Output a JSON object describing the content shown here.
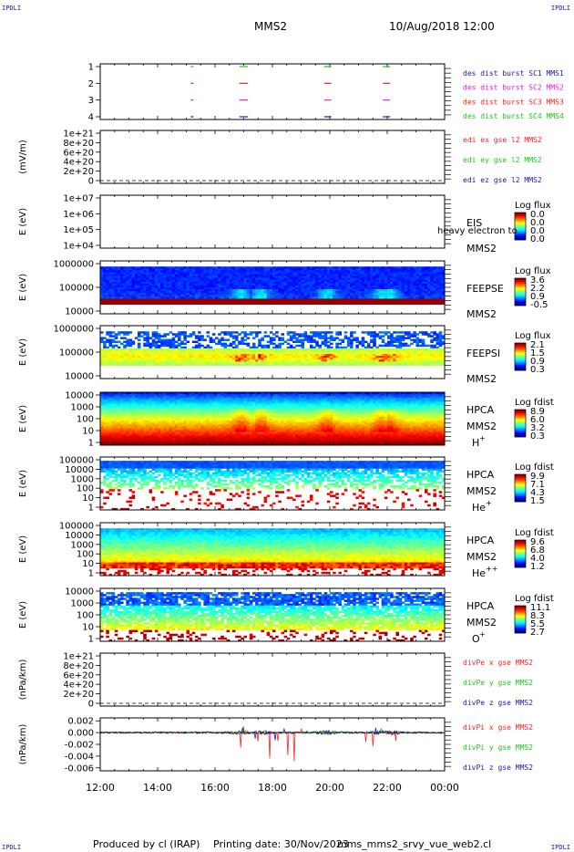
{
  "header": {
    "spacecraft": "MMS2",
    "datetime": "10/Aug/2018 12:00",
    "corner_tl": "IPDLI",
    "corner_tr": "IPDLI",
    "corner_bl": "IPDLI",
    "corner_br": "IPDLI"
  },
  "footer": {
    "produced": "Produced by cl (IRAP)",
    "printing": "Printing date: 30/Nov/2023",
    "file": "mms_mms2_srvy_vue_web2.cl"
  },
  "colors": {
    "red": "#ff2020",
    "green": "#18c818",
    "blue": "#1a1aa8",
    "magenta": "#e020e0",
    "black": "#000000"
  },
  "x_axis": {
    "ticks": [
      "12:00",
      "14:00",
      "16:00",
      "18:00",
      "20:00",
      "22:00",
      "00:00"
    ]
  },
  "chart_data": [
    {
      "type": "line",
      "id": "bursts",
      "ylabel": "",
      "ylim": [
        0.5,
        4.5
      ],
      "yticks": [
        "1",
        "2",
        "3",
        "4"
      ],
      "legend": [
        {
          "name": "des dist burst SC1 MMS1",
          "color": "#1a1aa8"
        },
        {
          "name": "des dist burst SC2 MMS2",
          "color": "#e020e0"
        },
        {
          "name": "des dist burst SC3 MMS3",
          "color": "#ff2020"
        },
        {
          "name": "des dist burst SC4 MMS4",
          "color": "#18c818"
        }
      ],
      "series": [
        {
          "level": 4,
          "color": "#18c818",
          "intervals": [
            [
              15.15,
              15.25
            ],
            [
              16.85,
              17.15
            ],
            [
              19.8,
              20.05
            ],
            [
              21.85,
              22.1
            ]
          ]
        },
        {
          "level": 3,
          "color": "#ff2020",
          "intervals": [
            [
              15.15,
              15.25
            ],
            [
              16.85,
              17.15
            ],
            [
              19.8,
              20.05
            ],
            [
              21.85,
              22.1
            ]
          ]
        },
        {
          "level": 2,
          "color": "#e020e0",
          "intervals": [
            [
              15.15,
              15.25
            ],
            [
              16.85,
              17.15
            ],
            [
              19.8,
              20.05
            ],
            [
              21.85,
              22.1
            ]
          ]
        },
        {
          "level": 1,
          "color": "#1a1aa8",
          "intervals": [
            [
              15.15,
              15.25
            ],
            [
              16.85,
              17.15
            ],
            [
              19.8,
              20.05
            ],
            [
              21.85,
              22.1
            ]
          ]
        }
      ]
    },
    {
      "type": "line",
      "id": "edi",
      "ylabel": "(mV/m)",
      "yticks": [
        "1e+21",
        "8e+20",
        "6e+20",
        "4e+20",
        "2e+20",
        "0"
      ],
      "legend": [
        {
          "name": "edi ex gse l2 MMS2",
          "color": "#ff2020"
        },
        {
          "name": "edi ey gse l2 MMS2",
          "color": "#18c818"
        },
        {
          "name": "edi ez gse l2 MMS2",
          "color": "#1a1aa8"
        }
      ],
      "series": []
    },
    {
      "type": "heatmap",
      "id": "eis",
      "ylabel": "E (eV)",
      "yticks": [
        "1e+07",
        "1e+06",
        "1e+05",
        "1e+04"
      ],
      "labels": [
        "EIS",
        "MMS2"
      ],
      "overlay_label": "heavy electron to",
      "colorbar": {
        "title": "Log flux",
        "ticks": [
          "0.0",
          "0.0",
          "0.0",
          "0.0"
        ]
      }
    },
    {
      "type": "heatmap",
      "id": "feepse",
      "ylabel": "E (eV)",
      "yticks": [
        "1000000",
        "100000",
        "10000"
      ],
      "labels": [
        "FEEPSE",
        "MMS2"
      ],
      "colorbar": {
        "title": "Log flux",
        "ticks": [
          "3.6",
          "2.2",
          "0.9",
          "-0.5"
        ]
      }
    },
    {
      "type": "heatmap",
      "id": "feepsi",
      "ylabel": "E (eV)",
      "yticks": [
        "1000000",
        "100000",
        "10000"
      ],
      "labels": [
        "FEEPSI",
        "MMS2"
      ],
      "colorbar": {
        "title": "Log flux",
        "ticks": [
          "2.1",
          "1.5",
          "0.9",
          "0.3"
        ]
      }
    },
    {
      "type": "heatmap",
      "id": "hpca_h",
      "ylabel": "E (eV)",
      "yticks": [
        "10000",
        "1000",
        "100",
        "10",
        "1"
      ],
      "labels": [
        "HPCA",
        "MMS2"
      ],
      "species": {
        "base": "H",
        "sup": "+"
      },
      "colorbar": {
        "title": "Log fdist",
        "ticks": [
          "8.9",
          "6.0",
          "3.2",
          "0.3"
        ]
      }
    },
    {
      "type": "heatmap",
      "id": "hpca_he",
      "ylabel": "E (eV)",
      "yticks": [
        "100000",
        "10000",
        "1000",
        "100",
        "10",
        "1"
      ],
      "labels": [
        "HPCA",
        "MMS2"
      ],
      "species": {
        "base": "He",
        "sup": "+"
      },
      "colorbar": {
        "title": "Log fdist",
        "ticks": [
          "9.9",
          "7.1",
          "4.3",
          "1.5"
        ]
      }
    },
    {
      "type": "heatmap",
      "id": "hpca_hepp",
      "ylabel": "E (eV)",
      "yticks": [
        "100000",
        "10000",
        "1000",
        "100",
        "10",
        "1"
      ],
      "labels": [
        "HPCA",
        "MMS2"
      ],
      "species": {
        "base": "He",
        "sup": "++"
      },
      "colorbar": {
        "title": "Log fdist",
        "ticks": [
          "9.6",
          "6.8",
          "4.0",
          "1.2"
        ]
      }
    },
    {
      "type": "heatmap",
      "id": "hpca_o",
      "ylabel": "E (eV)",
      "yticks": [
        "10000",
        "1000",
        "100",
        "10",
        "1"
      ],
      "labels": [
        "HPCA",
        "MMS2"
      ],
      "species": {
        "base": "O",
        "sup": "+"
      },
      "colorbar": {
        "title": "Log fdist",
        "ticks": [
          "11.1",
          "8.3",
          "5.5",
          "2.7"
        ]
      }
    },
    {
      "type": "line",
      "id": "divpe",
      "ylabel": "(nPa/km)",
      "yticks": [
        "1e+21",
        "8e+20",
        "6e+20",
        "4e+20",
        "2e+20",
        "0"
      ],
      "legend": [
        {
          "name": "divPe x gse MMS2",
          "color": "#ff2020"
        },
        {
          "name": "divPe y gse MMS2",
          "color": "#18c818"
        },
        {
          "name": "divPe z gse MMS2",
          "color": "#1a1aa8"
        }
      ],
      "series": []
    },
    {
      "type": "line",
      "id": "divpi",
      "ylabel": "(nPa/km)",
      "ylim": [
        -0.0065,
        0.0025
      ],
      "yticks": [
        "0.002",
        "0.000",
        "-0.002",
        "-0.004",
        "-0.006"
      ],
      "legend": [
        {
          "name": "divPi x gse MMS2",
          "color": "#ff2020"
        },
        {
          "name": "divPi y gse MMS2",
          "color": "#18c818"
        },
        {
          "name": "divPi z gse MMS2",
          "color": "#1a1aa8"
        }
      ],
      "series": [
        {
          "name": "divPi x gse MMS2",
          "color": "#ff2020",
          "spikes": [
            [
              16.9,
              -0.0028
            ],
            [
              17.0,
              0.0012
            ],
            [
              17.5,
              -0.0018
            ],
            [
              17.9,
              -0.0052
            ],
            [
              18.2,
              -0.0018
            ],
            [
              18.55,
              -0.0045
            ],
            [
              18.75,
              -0.0058
            ],
            [
              19.0,
              0.0008
            ],
            [
              20.1,
              -0.0012
            ],
            [
              21.25,
              -0.0018
            ],
            [
              21.5,
              -0.0025
            ],
            [
              21.9,
              0.0012
            ],
            [
              22.3,
              -0.0015
            ]
          ]
        },
        {
          "name": "divPi y gse MMS2",
          "color": "#18c818",
          "spikes": [
            [
              17.0,
              0.0006
            ],
            [
              18.3,
              -0.0008
            ],
            [
              19.2,
              0.0004
            ],
            [
              21.8,
              0.0008
            ]
          ]
        },
        {
          "name": "divPi z gse MMS2",
          "color": "#1a1aa8",
          "spikes": [
            [
              16.95,
              0.0009
            ],
            [
              17.4,
              -0.0012
            ],
            [
              18.1,
              -0.0014
            ],
            [
              18.4,
              0.0007
            ],
            [
              21.6,
              0.0009
            ],
            [
              22.5,
              -0.001
            ]
          ]
        }
      ]
    }
  ]
}
